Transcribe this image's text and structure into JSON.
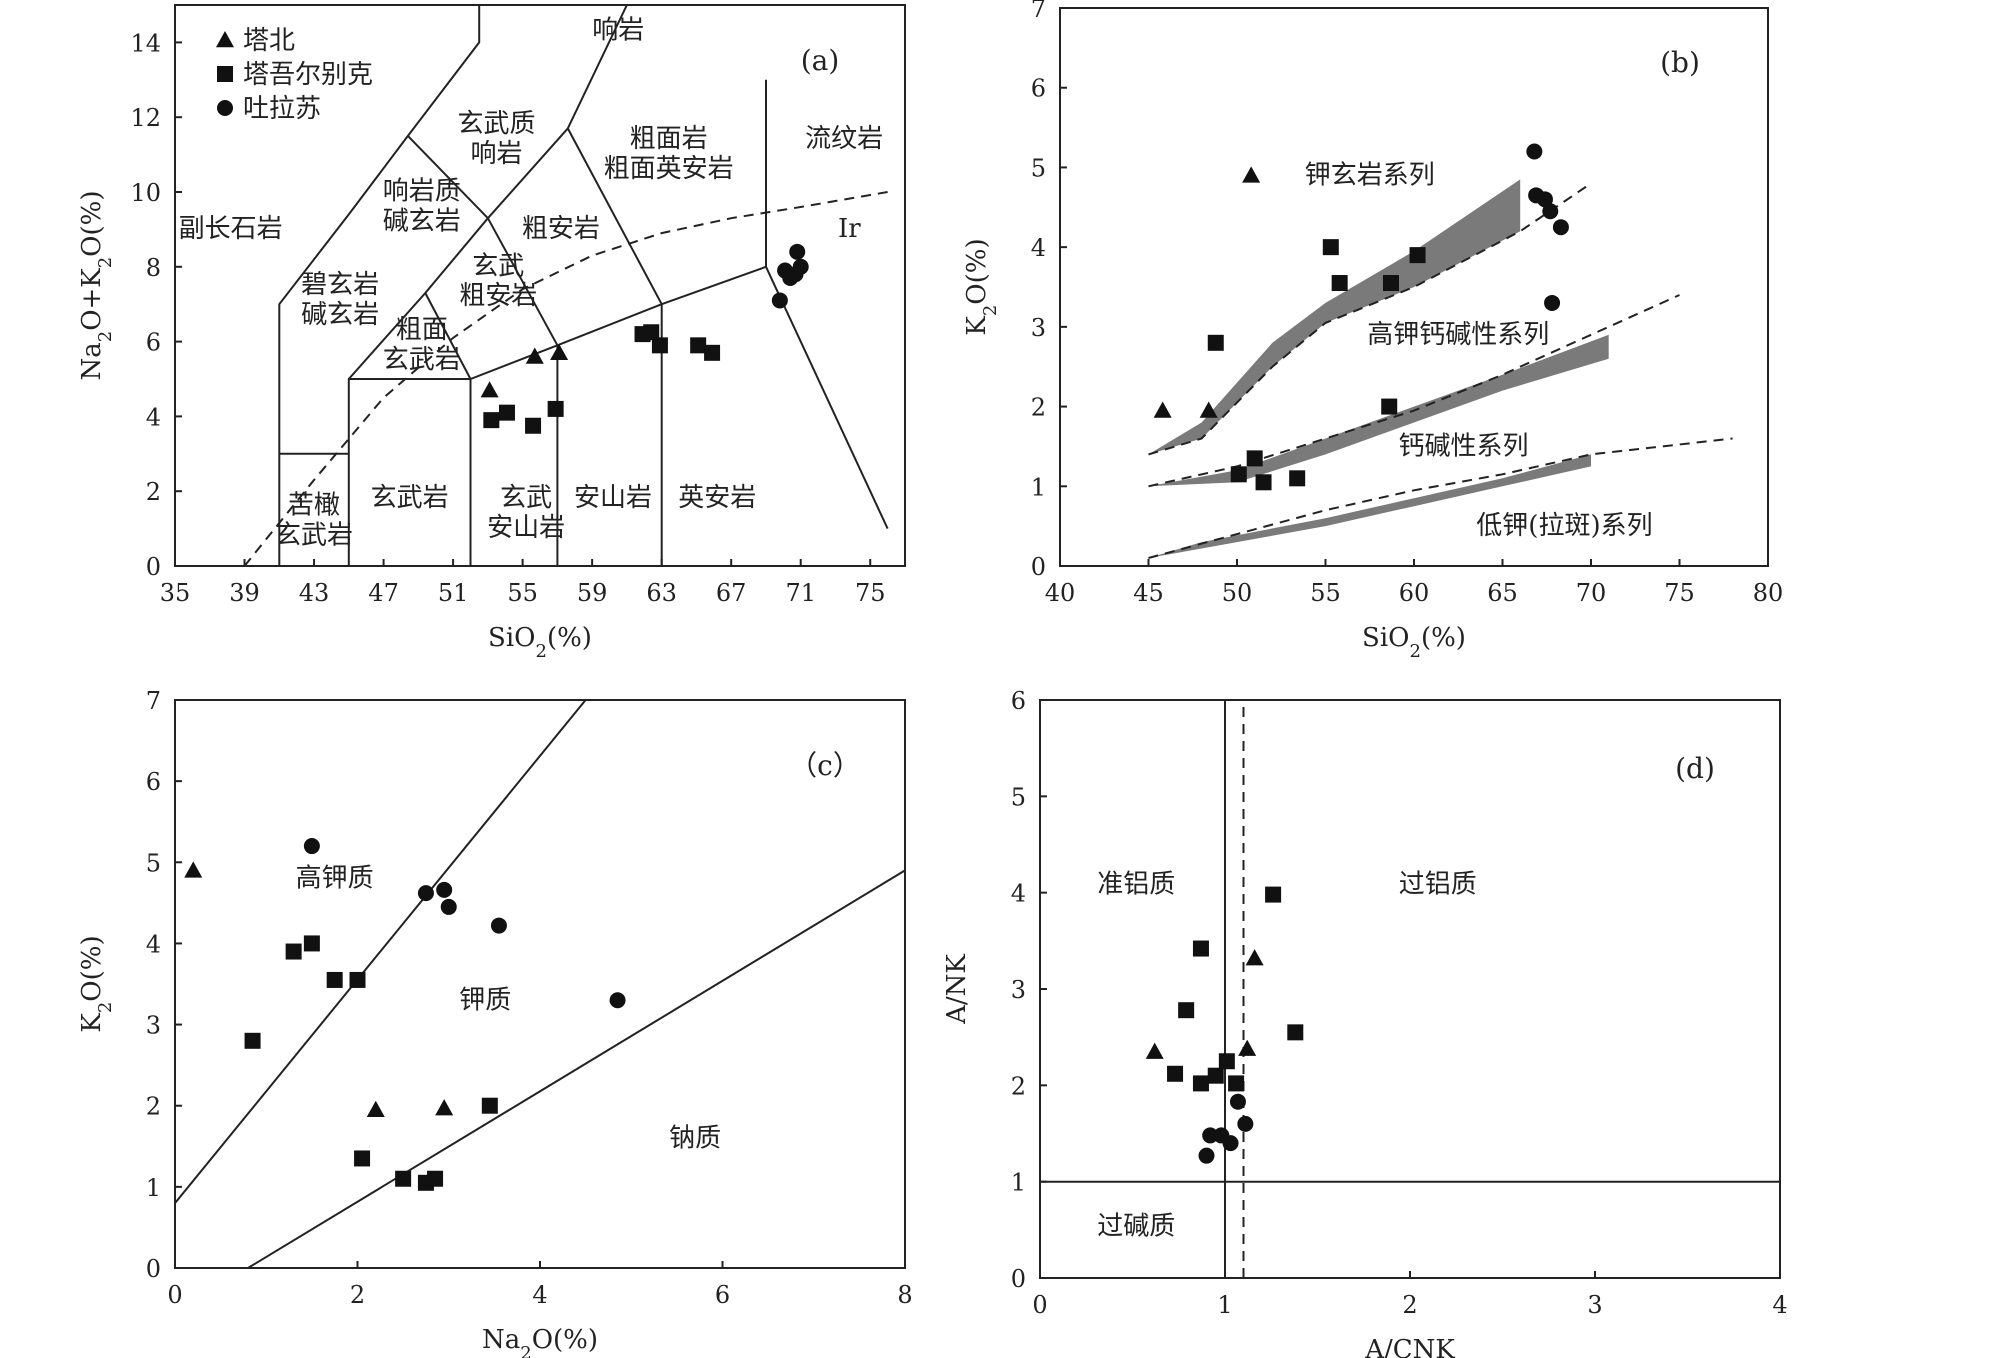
{
  "chart_data": [
    {
      "id": "a",
      "type": "scatter",
      "panel_label": "(a)",
      "xlabel": "SiO₂(%)",
      "ylabel": "Na₂O+K₂O(%)",
      "xlim": [
        35,
        77
      ],
      "ylim": [
        0,
        15
      ],
      "xticks": [
        35,
        39,
        43,
        47,
        51,
        55,
        59,
        63,
        67,
        71,
        75
      ],
      "yticks": [
        0,
        2,
        4,
        6,
        8,
        10,
        12,
        14
      ],
      "legend": [
        {
          "label": "塔北",
          "marker": "triangle"
        },
        {
          "label": "塔吾尔别克",
          "marker": "square"
        },
        {
          "label": "吐拉苏",
          "marker": "circle"
        }
      ],
      "boundaries": [
        [
          [
            41,
            0
          ],
          [
            41,
            7
          ],
          [
            45,
            9.4
          ],
          [
            48.4,
            11.5
          ],
          [
            52.5,
            14
          ],
          [
            52.5,
            15
          ]
        ],
        [
          [
            45,
            0
          ],
          [
            45,
            5
          ],
          [
            49.4,
            7.3
          ],
          [
            53,
            9.3
          ],
          [
            57.6,
            11.7
          ],
          [
            61,
            15
          ]
        ],
        [
          [
            45,
            5
          ],
          [
            52,
            5
          ],
          [
            57,
            5.9
          ],
          [
            63,
            7
          ],
          [
            69,
            8
          ],
          [
            69,
            13
          ]
        ],
        [
          [
            52,
            0
          ],
          [
            52,
            5
          ]
        ],
        [
          [
            57,
            0
          ],
          [
            57,
            5.9
          ]
        ],
        [
          [
            63,
            0
          ],
          [
            63,
            7
          ]
        ],
        [
          [
            41,
            3
          ],
          [
            45,
            3
          ]
        ],
        [
          [
            52,
            5
          ],
          [
            49.4,
            7.3
          ]
        ],
        [
          [
            57,
            5.9
          ],
          [
            53,
            9.3
          ],
          [
            48.4,
            11.5
          ]
        ],
        [
          [
            63,
            7
          ],
          [
            57.6,
            11.7
          ],
          [
            57.6,
            11.7
          ]
        ],
        [
          [
            69,
            8
          ],
          [
            76,
            1
          ]
        ]
      ],
      "dashed": [
        [
          [
            39,
            0
          ],
          [
            43,
            2.3
          ],
          [
            47,
            4.5
          ],
          [
            51,
            6.1
          ],
          [
            55,
            7.4
          ],
          [
            59,
            8.3
          ],
          [
            63,
            8.9
          ],
          [
            67,
            9.3
          ],
          [
            71,
            9.6
          ],
          [
            76,
            10
          ]
        ]
      ],
      "regions": [
        {
          "text": "响岩",
          "x": 60.5,
          "y": 14.1
        },
        {
          "text": "玄武质",
          "x": 53.5,
          "y": 11.6
        },
        {
          "text": "响岩",
          "x": 53.5,
          "y": 10.8
        },
        {
          "text": "粗面岩",
          "x": 63.4,
          "y": 11.2
        },
        {
          "text": "粗面英安岩",
          "x": 63.4,
          "y": 10.4
        },
        {
          "text": "流纹岩",
          "x": 73.5,
          "y": 11.2
        },
        {
          "text": "响岩质",
          "x": 49.2,
          "y": 9.8
        },
        {
          "text": "碱玄岩",
          "x": 49.2,
          "y": 9.0
        },
        {
          "text": "副长石岩",
          "x": 38.2,
          "y": 8.8
        },
        {
          "text": "粗安岩",
          "x": 57.2,
          "y": 8.8
        },
        {
          "text": "Ir",
          "x": 73.8,
          "y": 8.8
        },
        {
          "text": "玄武",
          "x": 53.6,
          "y": 7.8
        },
        {
          "text": "粗安岩",
          "x": 53.6,
          "y": 7.0
        },
        {
          "text": "碧玄岩",
          "x": 44.5,
          "y": 7.3
        },
        {
          "text": "碱玄岩",
          "x": 44.5,
          "y": 6.5
        },
        {
          "text": "粗面",
          "x": 49.2,
          "y": 6.1
        },
        {
          "text": "玄武岩",
          "x": 49.2,
          "y": 5.3
        },
        {
          "text": "苦橄",
          "x": 43,
          "y": 1.4
        },
        {
          "text": "玄武岩",
          "x": 43,
          "y": 0.6
        },
        {
          "text": "玄武岩",
          "x": 48.5,
          "y": 1.6
        },
        {
          "text": "玄武",
          "x": 55.2,
          "y": 1.6
        },
        {
          "text": "安山岩",
          "x": 55.2,
          "y": 0.8
        },
        {
          "text": "安山岩",
          "x": 60.2,
          "y": 1.6
        },
        {
          "text": "英安岩",
          "x": 66.2,
          "y": 1.6
        }
      ],
      "series": [
        {
          "name": "塔北",
          "marker": "triangle",
          "points": [
            [
              53.1,
              4.7
            ],
            [
              55.7,
              5.6
            ],
            [
              57.1,
              5.7
            ]
          ]
        },
        {
          "name": "塔吾尔别克",
          "marker": "square",
          "points": [
            [
              53.2,
              3.9
            ],
            [
              54.1,
              4.1
            ],
            [
              55.6,
              3.75
            ],
            [
              56.9,
              4.2
            ],
            [
              61.9,
              6.2
            ],
            [
              62.4,
              6.25
            ],
            [
              62.9,
              5.9
            ],
            [
              65.1,
              5.9
            ],
            [
              65.9,
              5.7
            ]
          ]
        },
        {
          "name": "吐拉苏",
          "marker": "circle",
          "points": [
            [
              69.8,
              7.1
            ],
            [
              70.1,
              7.9
            ],
            [
              70.4,
              7.7
            ],
            [
              70.8,
              8.4
            ],
            [
              71.0,
              8.0
            ],
            [
              70.7,
              7.8
            ]
          ]
        }
      ]
    },
    {
      "id": "b",
      "type": "scatter",
      "panel_label": "(b)",
      "xlabel": "SiO₂(%)",
      "ylabel": "K₂O(%)",
      "xlim": [
        40,
        80
      ],
      "ylim": [
        0,
        7
      ],
      "xticks": [
        40,
        45,
        50,
        55,
        60,
        65,
        70,
        75,
        80
      ],
      "yticks": [
        0,
        1,
        2,
        3,
        4,
        5,
        6,
        7
      ],
      "bands": [
        [
          [
            45,
            1.4
          ],
          [
            48,
            1.8
          ],
          [
            52,
            2.8
          ],
          [
            55,
            3.3
          ],
          [
            60,
            3.95
          ],
          [
            66,
            4.85
          ],
          [
            66,
            4.2
          ],
          [
            60,
            3.5
          ],
          [
            55,
            3.05
          ],
          [
            52,
            2.5
          ],
          [
            48,
            1.6
          ],
          [
            45,
            1.4
          ]
        ],
        [
          [
            45,
            1.0
          ],
          [
            50,
            1.2
          ],
          [
            55,
            1.6
          ],
          [
            60,
            2.0
          ],
          [
            65,
            2.4
          ],
          [
            71,
            2.9
          ],
          [
            71,
            2.6
          ],
          [
            65,
            2.2
          ],
          [
            60,
            1.8
          ],
          [
            55,
            1.4
          ],
          [
            50,
            1.05
          ],
          [
            45,
            1.0
          ]
        ],
        [
          [
            45,
            0.1
          ],
          [
            48,
            0.3
          ],
          [
            55,
            0.6
          ],
          [
            60,
            0.85
          ],
          [
            65,
            1.1
          ],
          [
            70,
            1.4
          ],
          [
            70,
            1.25
          ],
          [
            65,
            1.0
          ],
          [
            60,
            0.75
          ],
          [
            55,
            0.5
          ],
          [
            48,
            0.22
          ],
          [
            45,
            0.1
          ]
        ]
      ],
      "dashed": [
        [
          [
            45,
            1.4
          ],
          [
            48,
            1.6
          ],
          [
            52,
            2.5
          ],
          [
            55,
            3.05
          ],
          [
            60,
            3.5
          ],
          [
            66,
            4.2
          ],
          [
            70,
            4.8
          ]
        ],
        [
          [
            45,
            1.0
          ],
          [
            50,
            1.25
          ],
          [
            55,
            1.6
          ],
          [
            60,
            1.95
          ],
          [
            65,
            2.4
          ],
          [
            70,
            2.9
          ],
          [
            75,
            3.4
          ]
        ],
        [
          [
            45,
            0.1
          ],
          [
            50,
            0.4
          ],
          [
            55,
            0.7
          ],
          [
            60,
            0.95
          ],
          [
            65,
            1.15
          ],
          [
            70,
            1.4
          ],
          [
            78,
            1.6
          ]
        ]
      ],
      "regions": [
        {
          "text": "钾玄岩系列",
          "x": 57.5,
          "y": 4.8
        },
        {
          "text": "高钾钙碱性系列",
          "x": 62.5,
          "y": 2.8
        },
        {
          "text": "钙碱性系列",
          "x": 62.8,
          "y": 1.4
        },
        {
          "text": "低钾(拉斑)系列",
          "x": 68.5,
          "y": 0.4
        }
      ],
      "series": [
        {
          "name": "塔北",
          "marker": "triangle",
          "points": [
            [
              45.8,
              1.95
            ],
            [
              48.4,
              1.95
            ],
            [
              50.8,
              4.9
            ]
          ]
        },
        {
          "name": "塔吾尔别克",
          "marker": "square",
          "points": [
            [
              48.8,
              2.8
            ],
            [
              50.1,
              1.15
            ],
            [
              51.0,
              1.35
            ],
            [
              51.5,
              1.05
            ],
            [
              53.4,
              1.1
            ],
            [
              55.3,
              4.0
            ],
            [
              55.8,
              3.55
            ],
            [
              58.7,
              3.55
            ],
            [
              60.2,
              3.9
            ],
            [
              58.6,
              2.0
            ]
          ]
        },
        {
          "name": "吐拉苏",
          "marker": "circle",
          "points": [
            [
              66.8,
              5.2
            ],
            [
              66.9,
              4.65
            ],
            [
              67.4,
              4.6
            ],
            [
              67.7,
              4.45
            ],
            [
              68.3,
              4.25
            ],
            [
              67.8,
              3.3
            ]
          ]
        }
      ]
    },
    {
      "id": "c",
      "type": "scatter",
      "panel_label": "（c）",
      "xlabel": "Na₂O(%)",
      "ylabel": "K₂O(%)",
      "xlim": [
        0,
        8
      ],
      "ylim": [
        0,
        7
      ],
      "xticks": [
        0,
        2,
        4,
        6,
        8
      ],
      "yticks": [
        0,
        1,
        2,
        3,
        4,
        5,
        6,
        7
      ],
      "boundaries": [
        [
          [
            0,
            0.8
          ],
          [
            4.5,
            7
          ]
        ],
        [
          [
            0.8,
            0
          ],
          [
            8,
            4.9
          ]
        ]
      ],
      "regions": [
        {
          "text": "高钾质",
          "x": 1.75,
          "y": 4.7
        },
        {
          "text": "钾质",
          "x": 3.4,
          "y": 3.2
        },
        {
          "text": "钠质",
          "x": 5.7,
          "y": 1.5
        }
      ],
      "series": [
        {
          "name": "塔北",
          "marker": "triangle",
          "points": [
            [
              0.2,
              4.9
            ],
            [
              2.2,
              1.95
            ],
            [
              2.95,
              1.97
            ]
          ]
        },
        {
          "name": "塔吾尔别克",
          "marker": "square",
          "points": [
            [
              0.85,
              2.8
            ],
            [
              1.3,
              3.9
            ],
            [
              1.5,
              4.0
            ],
            [
              1.75,
              3.55
            ],
            [
              2.0,
              3.55
            ],
            [
              2.05,
              1.35
            ],
            [
              2.5,
              1.1
            ],
            [
              2.75,
              1.05
            ],
            [
              2.85,
              1.1
            ],
            [
              3.45,
              2.0
            ]
          ]
        },
        {
          "name": "吐拉苏",
          "marker": "circle",
          "points": [
            [
              1.5,
              5.2
            ],
            [
              2.75,
              4.62
            ],
            [
              2.95,
              4.66
            ],
            [
              3.0,
              4.45
            ],
            [
              3.55,
              4.22
            ],
            [
              4.85,
              3.3
            ]
          ]
        }
      ]
    },
    {
      "id": "d",
      "type": "scatter",
      "panel_label": "(d)",
      "xlabel": "A/CNK",
      "ylabel": "A/NK",
      "xlim": [
        0,
        4
      ],
      "ylim": [
        0,
        6
      ],
      "xticks": [
        0,
        1,
        2,
        3,
        4
      ],
      "yticks": [
        0,
        1,
        2,
        3,
        4,
        5,
        6
      ],
      "boundaries": [
        [
          [
            1.0,
            0
          ],
          [
            1.0,
            6
          ]
        ],
        [
          [
            0,
            1.0
          ],
          [
            4,
            1.0
          ]
        ]
      ],
      "dashed": [
        [
          [
            1.1,
            0
          ],
          [
            1.1,
            6
          ]
        ]
      ],
      "regions": [
        {
          "text": "准铝质",
          "x": 0.52,
          "y": 4.0
        },
        {
          "text": "过铝质",
          "x": 2.15,
          "y": 4.0
        },
        {
          "text": "过碱质",
          "x": 0.52,
          "y": 0.45
        }
      ],
      "series": [
        {
          "name": "塔北",
          "marker": "triangle",
          "points": [
            [
              0.62,
              2.35
            ],
            [
              1.12,
              2.38
            ],
            [
              1.16,
              3.32
            ]
          ]
        },
        {
          "name": "塔吾尔别克",
          "marker": "square",
          "points": [
            [
              0.73,
              2.12
            ],
            [
              0.79,
              2.78
            ],
            [
              0.87,
              2.02
            ],
            [
              0.87,
              3.42
            ],
            [
              0.95,
              2.1
            ],
            [
              1.01,
              2.25
            ],
            [
              1.06,
              2.02
            ],
            [
              1.26,
              3.98
            ],
            [
              1.38,
              2.55
            ]
          ]
        },
        {
          "name": "吐拉苏",
          "marker": "circle",
          "points": [
            [
              0.9,
              1.27
            ],
            [
              0.92,
              1.48
            ],
            [
              0.98,
              1.48
            ],
            [
              1.03,
              1.4
            ],
            [
              1.07,
              1.83
            ],
            [
              1.11,
              1.6
            ]
          ]
        }
      ]
    }
  ]
}
